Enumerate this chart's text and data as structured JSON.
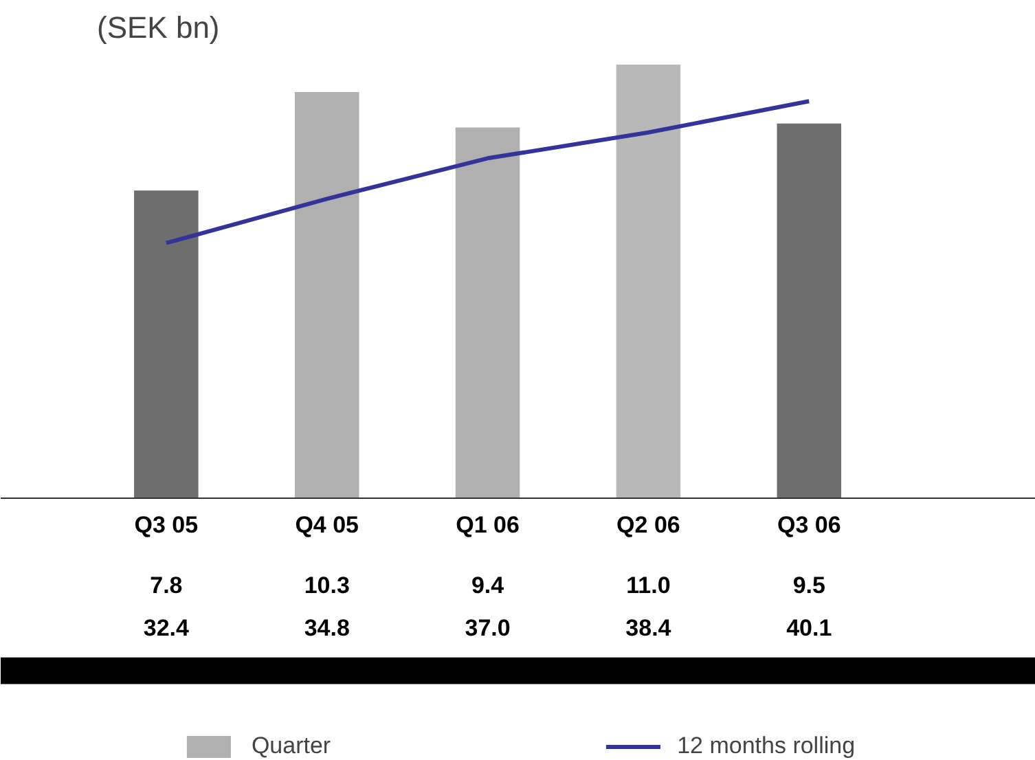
{
  "chart_data": {
    "type": "bar",
    "title": "(SEK bn)",
    "categories": [
      "Q3 05",
      "Q4 05",
      "Q1 06",
      "Q2 06",
      "Q3 06"
    ],
    "series": [
      {
        "name": "Quarter",
        "values": [
          7.8,
          10.3,
          9.4,
          11.0,
          9.5
        ],
        "colors": [
          "#6e6e6e",
          "#b0b0b0",
          "#b0b0b0",
          "#b8b8b8",
          "#6e6e6e"
        ],
        "value_labels": [
          "7.8",
          "10.3",
          "9.4",
          "11.0",
          "9.5"
        ]
      },
      {
        "name": "12 months rolling",
        "type": "line",
        "axis": "y2",
        "color": "#333399",
        "values": [
          32.4,
          34.8,
          37.0,
          38.4,
          40.1
        ],
        "value_labels": [
          "32.4",
          "34.8",
          "37.0",
          "38.4",
          "40.1"
        ]
      }
    ],
    "tick_labels": "x",
    "grid": false,
    "legend": "bottom"
  }
}
